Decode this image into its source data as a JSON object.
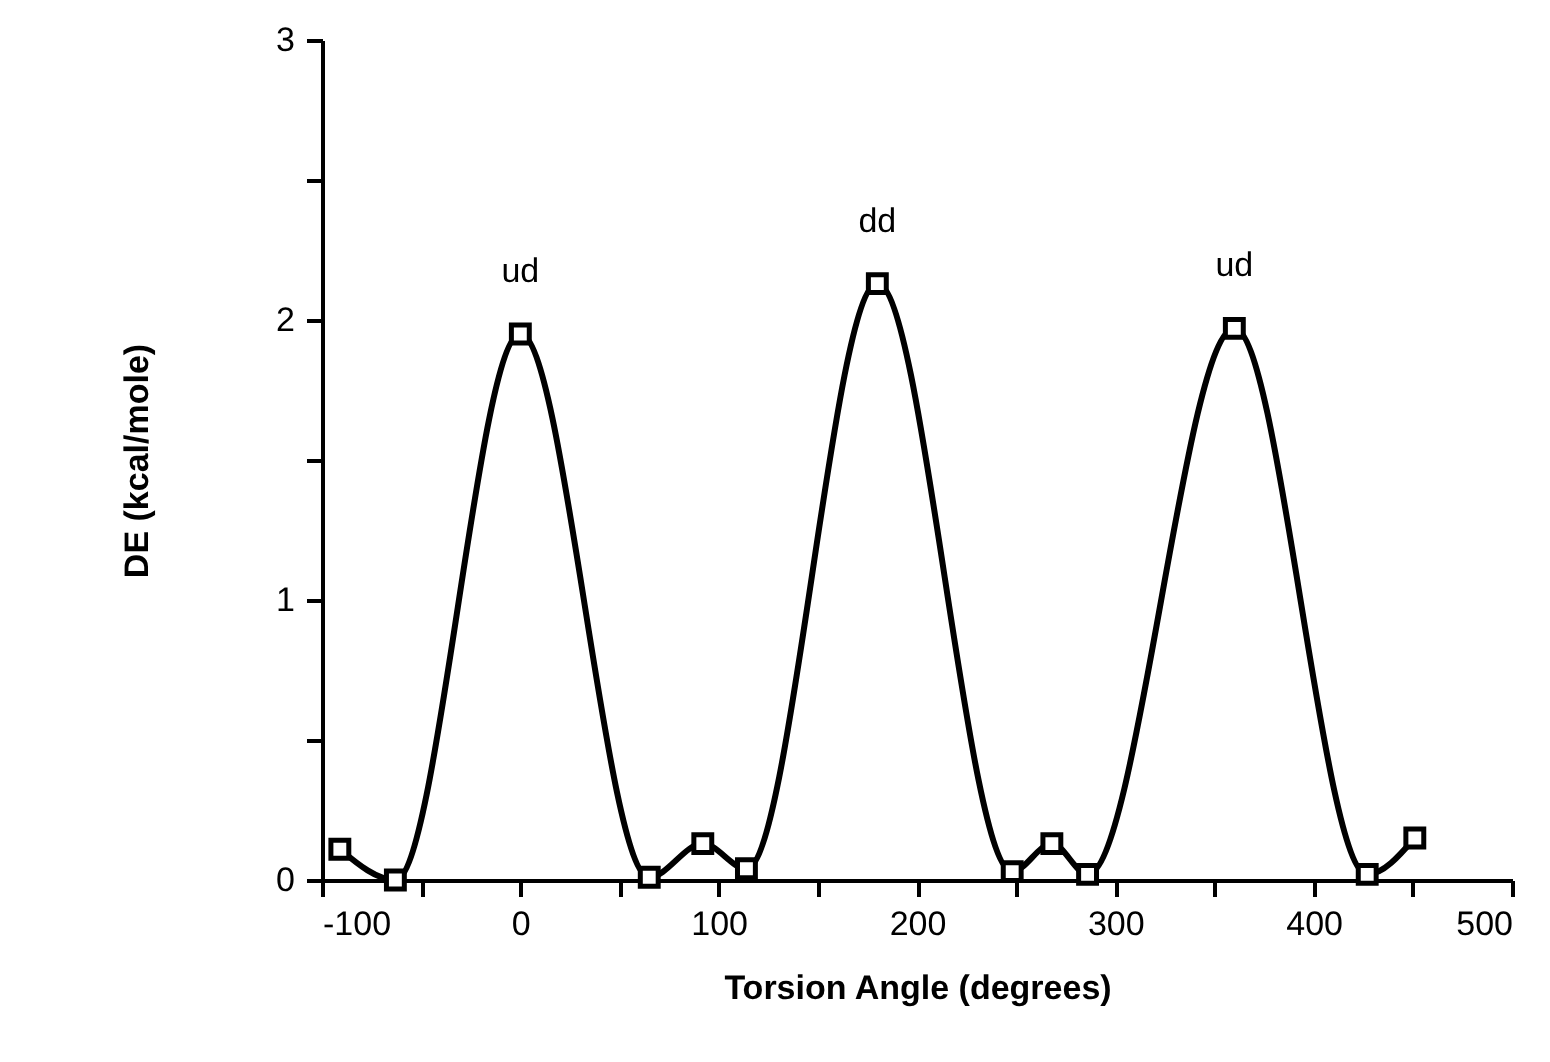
{
  "chart_data": {
    "type": "line",
    "xlabel": "Torsion Angle (degrees)",
    "ylabel": "DE (kcal/mole)",
    "x": [
      -91,
      -63,
      0,
      65,
      92,
      114,
      180,
      248,
      268,
      286,
      360,
      427,
      451
    ],
    "series": [
      {
        "color": "#000000",
        "values": [
          0.11,
          0,
          1.95,
          0.01,
          0.13,
          0.04,
          2.13,
          0.03,
          0.13,
          0.02,
          1.97,
          0.02,
          0.15
        ]
      }
    ],
    "xlim": [
      -100,
      500
    ],
    "xticks": [
      -100,
      {
        "value": -50,
        "label": null
      },
      0,
      {
        "value": 50,
        "label": null
      },
      100,
      {
        "value": 150,
        "label": null
      },
      200,
      {
        "value": 250,
        "label": null
      },
      300,
      {
        "value": 350,
        "label": null
      },
      400,
      {
        "value": 450,
        "label": null
      },
      500
    ],
    "ylim": [
      0,
      3
    ],
    "yticks": [
      0,
      {
        "value": 0.5,
        "label": null
      },
      1,
      {
        "value": 1.5,
        "label": null
      },
      2,
      {
        "value": 2.5,
        "label": null
      },
      3
    ],
    "annotations": [
      {
        "text": "ud",
        "x": 0,
        "y": 1.95
      },
      {
        "text": "dd",
        "x": 180,
        "y": 2.13
      },
      {
        "text": "ud",
        "x": 360,
        "y": 1.97
      }
    ],
    "grid": false,
    "marker": "square",
    "line_style": "solid"
  }
}
